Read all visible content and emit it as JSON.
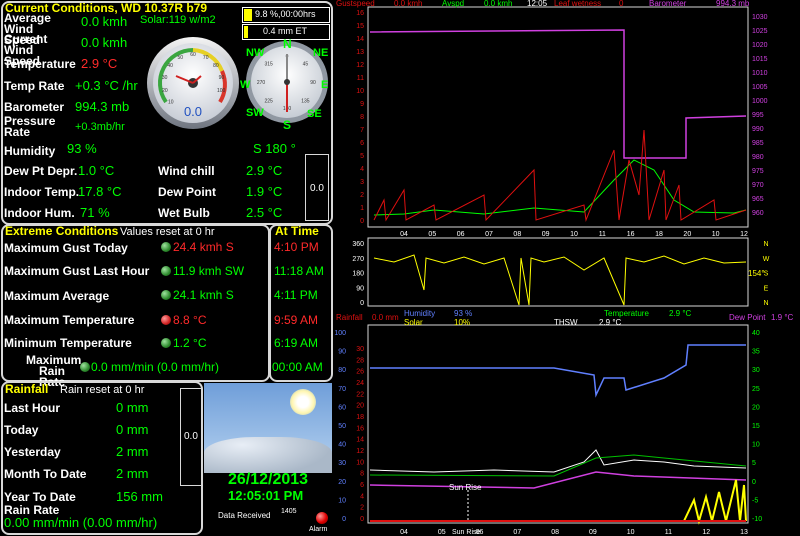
{
  "current": {
    "title": "Current Conditions, WD 10.37R b79",
    "solar": "Solar:119 w/m2",
    "sun_pct": "9.8 %,00:00hrs",
    "et": "0.4 mm ET",
    "rows": [
      {
        "label": "Average Wind Speed",
        "value": "0.0 kmh"
      },
      {
        "label": "Current Wind Speed",
        "value": "0.0 kmh"
      },
      {
        "label": "Temperature",
        "value": "2.9 °C"
      },
      {
        "label": "Temp Rate",
        "value": "+0.3 °C /hr"
      },
      {
        "label": "Barometer",
        "value": "994.3 mb"
      },
      {
        "label": "Pressure Rate",
        "value": "+0.3mb/hr"
      },
      {
        "label": "Humidity",
        "value": "93 %"
      }
    ],
    "wind_dir": "S  180 °",
    "dew_depr": {
      "label": "Dew Pt Depr.",
      "value": "1.0 °C"
    },
    "indoor_temp": {
      "label": "Indoor Temp.",
      "value": "17.8 °C"
    },
    "indoor_hum": {
      "label": "Indoor Hum.",
      "value": "71 %"
    },
    "wind_chill": {
      "label": "Wind chill",
      "value": "2.9 °C"
    },
    "dew_point": {
      "label": "Dew Point",
      "value": "1.9 °C"
    },
    "wet_bulb": {
      "label": "Wet Bulb",
      "value": "2.5 °C"
    },
    "side_box_value": "0.0",
    "speedo_value": "0.0",
    "speedo_ticks": [
      "10",
      "20",
      "30",
      "40",
      "50",
      "60",
      "70",
      "80",
      "90",
      "100"
    ],
    "compass": {
      "n": "N",
      "ne": "NE",
      "e": "E",
      "se": "SE",
      "s": "S",
      "sw": "SW",
      "w": "W",
      "nw": "NW"
    },
    "compass_ticks": [
      "0",
      "45",
      "90",
      "135",
      "180",
      "225",
      "270",
      "315"
    ]
  },
  "extreme": {
    "title": "Extreme Conditions",
    "subtitle": "Values reset at 0 hr",
    "at_time_title": "At Time",
    "rows": [
      {
        "label": "Maximum Gust Today",
        "value": "24.4 kmh S",
        "time": "4:10 PM",
        "red": true
      },
      {
        "label": "Maximum Gust Last Hour",
        "value": "11.9 kmh   SW",
        "time": "11:18 AM",
        "red": false
      },
      {
        "label": "Maximum Average",
        "value": "24.1 kmh S",
        "time": "4:11 PM",
        "red": false
      },
      {
        "label": "Maximum Temperature",
        "value": "8.8 °C",
        "time": "9:59 AM",
        "red": true
      },
      {
        "label": "Minimum Temperature",
        "value": "1.2 °C",
        "time": "6:19 AM",
        "red": false
      },
      {
        "label": "Maximum Rain Rate",
        "value": "0.0 mm/min (0.0 mm/hr)",
        "time": "00:00 AM",
        "red": false
      }
    ]
  },
  "rain": {
    "title": "Rainfall",
    "subtitle": "Rain reset at 0 hr",
    "rows": [
      {
        "label": "Last Hour",
        "value": "0 mm"
      },
      {
        "label": "Today",
        "value": "0 mm"
      },
      {
        "label": "Yesterday",
        "value": "2 mm"
      },
      {
        "label": "Month To Date",
        "value": "2 mm"
      },
      {
        "label": "Year To Date",
        "value": "156 mm"
      }
    ],
    "rate_label": "Rain Rate",
    "rate_value": "0.00 mm/min (0.00 mm/hr)",
    "side_value": "0.0"
  },
  "datetime": {
    "date": "26/12/2013",
    "time": "12:05:01 PM",
    "data_received": "Data Received",
    "data_received_count": "1405",
    "alarm": "Alarm"
  },
  "graph1": {
    "legend": {
      "gust": "Gustspeed",
      "gust_val": "0.0 kmh",
      "avg": "Avspd",
      "avg_val": "0.0 kmh",
      "time": "12:05",
      "leaf": "Leaf wetness",
      "leaf_val": "0",
      "baro": "Barometer",
      "baro_val": "994.3 mb"
    },
    "left_ticks": [
      "16",
      "15",
      "14",
      "13",
      "12",
      "11",
      "10",
      "9",
      "8",
      "7",
      "6",
      "5",
      "4",
      "3",
      "2",
      "1",
      "0"
    ],
    "right_ticks": [
      "1030",
      "1025",
      "1020",
      "1015",
      "1010",
      "1005",
      "1000",
      "995",
      "990",
      "985",
      "980",
      "975",
      "970",
      "965",
      "960"
    ],
    "x_ticks": [
      "04",
      "05",
      "06",
      "07",
      "08",
      "09",
      "10",
      "11",
      "16",
      "18",
      "20",
      "10",
      "12"
    ]
  },
  "graph2": {
    "left_ticks": [
      "360",
      "270",
      "180",
      "90",
      "0"
    ],
    "right_labels": [
      "N",
      "W",
      "S",
      "E",
      "N"
    ],
    "wind_dir_val": "154°"
  },
  "graph3": {
    "legend": {
      "rain": "Rainfall",
      "rain_val": "0.0 mm",
      "hum": "Humidity",
      "hum_val": "93 %",
      "solar": "Solar",
      "solar_val": "10%",
      "thsw": "THSW",
      "thsw_val": "2.9 °C",
      "temp": "Temperature",
      "temp_val": "2.9 °C",
      "dew": "Dew Point",
      "dew_val": "1.9 °C"
    },
    "left_ticks": [
      "100",
      "90",
      "80",
      "70",
      "60",
      "50",
      "40",
      "30",
      "20",
      "10",
      "0"
    ],
    "inner_ticks": [
      "30",
      "28",
      "26",
      "24",
      "22",
      "20",
      "18",
      "16",
      "14",
      "12",
      "10",
      "8",
      "6",
      "4",
      "2",
      "0"
    ],
    "right_ticks": [
      "40",
      "35",
      "30",
      "25",
      "20",
      "15",
      "10",
      "5",
      "0",
      "-5",
      "-10"
    ],
    "x_ticks": [
      "04",
      "05",
      "06",
      "07",
      "08",
      "09",
      "10",
      "11",
      "12",
      "13"
    ],
    "sun_rise": "Sun Rise",
    "sun_rise_x": "Sun Rise"
  },
  "colors": {
    "label": "#ffffff",
    "value": "#00ff00",
    "title": "#ffff00",
    "alert": "#ff2a2a",
    "border": "#d8d8d8"
  }
}
